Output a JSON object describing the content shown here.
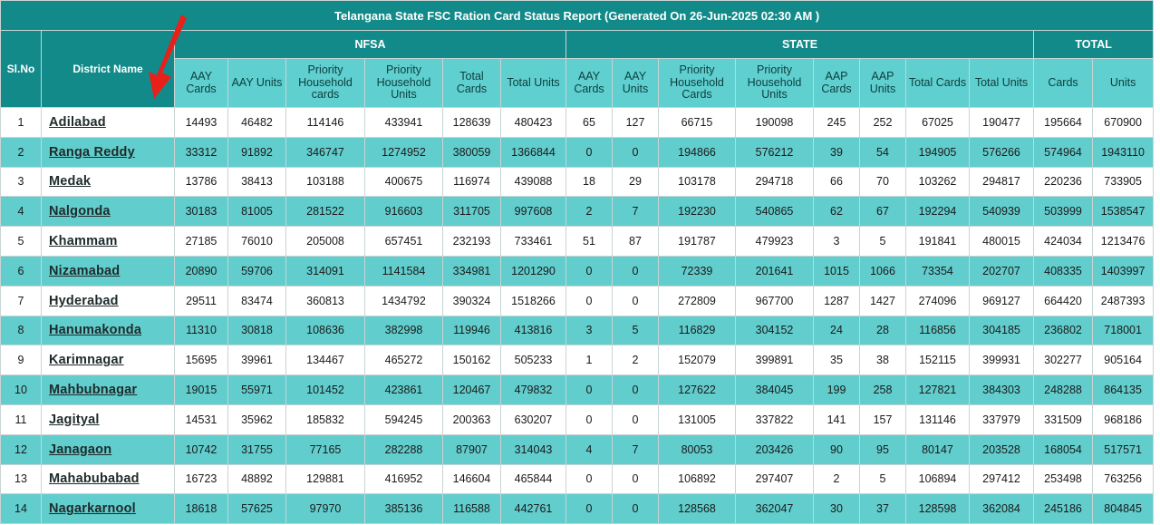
{
  "title": "Telangana State FSC Ration Card Status Report (Generated On 26-Jun-2025 02:30 AM )",
  "groups": {
    "slno": "Sl.No",
    "district": "District Name",
    "nfsa": "NFSA",
    "state": "STATE",
    "total": "TOTAL"
  },
  "subheaders": {
    "nfsa": [
      "AAY Cards",
      "AAY Units",
      "Priority Household cards",
      "Priority Household Units",
      "Total Cards",
      "Total Units"
    ],
    "state": [
      "AAY Cards",
      "AAY Units",
      "Priority Household Cards",
      "Priority Household Units",
      "AAP Cards",
      "AAP Units",
      "Total Cards",
      "Total Units"
    ],
    "total": [
      "Cards",
      "Units"
    ]
  },
  "rows": [
    {
      "sl": "1",
      "district": "Adilabad",
      "nfsa": [
        "14493",
        "46482",
        "114146",
        "433941",
        "128639",
        "480423"
      ],
      "state": [
        "65",
        "127",
        "66715",
        "190098",
        "245",
        "252",
        "67025",
        "190477"
      ],
      "total": [
        "195664",
        "670900"
      ]
    },
    {
      "sl": "2",
      "district": "Ranga Reddy",
      "nfsa": [
        "33312",
        "91892",
        "346747",
        "1274952",
        "380059",
        "1366844"
      ],
      "state": [
        "0",
        "0",
        "194866",
        "576212",
        "39",
        "54",
        "194905",
        "576266"
      ],
      "total": [
        "574964",
        "1943110"
      ]
    },
    {
      "sl": "3",
      "district": "Medak",
      "nfsa": [
        "13786",
        "38413",
        "103188",
        "400675",
        "116974",
        "439088"
      ],
      "state": [
        "18",
        "29",
        "103178",
        "294718",
        "66",
        "70",
        "103262",
        "294817"
      ],
      "total": [
        "220236",
        "733905"
      ]
    },
    {
      "sl": "4",
      "district": "Nalgonda",
      "nfsa": [
        "30183",
        "81005",
        "281522",
        "916603",
        "311705",
        "997608"
      ],
      "state": [
        "2",
        "7",
        "192230",
        "540865",
        "62",
        "67",
        "192294",
        "540939"
      ],
      "total": [
        "503999",
        "1538547"
      ]
    },
    {
      "sl": "5",
      "district": "Khammam",
      "nfsa": [
        "27185",
        "76010",
        "205008",
        "657451",
        "232193",
        "733461"
      ],
      "state": [
        "51",
        "87",
        "191787",
        "479923",
        "3",
        "5",
        "191841",
        "480015"
      ],
      "total": [
        "424034",
        "1213476"
      ]
    },
    {
      "sl": "6",
      "district": "Nizamabad",
      "nfsa": [
        "20890",
        "59706",
        "314091",
        "1141584",
        "334981",
        "1201290"
      ],
      "state": [
        "0",
        "0",
        "72339",
        "201641",
        "1015",
        "1066",
        "73354",
        "202707"
      ],
      "total": [
        "408335",
        "1403997"
      ]
    },
    {
      "sl": "7",
      "district": "Hyderabad",
      "nfsa": [
        "29511",
        "83474",
        "360813",
        "1434792",
        "390324",
        "1518266"
      ],
      "state": [
        "0",
        "0",
        "272809",
        "967700",
        "1287",
        "1427",
        "274096",
        "969127"
      ],
      "total": [
        "664420",
        "2487393"
      ]
    },
    {
      "sl": "8",
      "district": "Hanumakonda",
      "nfsa": [
        "11310",
        "30818",
        "108636",
        "382998",
        "119946",
        "413816"
      ],
      "state": [
        "3",
        "5",
        "116829",
        "304152",
        "24",
        "28",
        "116856",
        "304185"
      ],
      "total": [
        "236802",
        "718001"
      ]
    },
    {
      "sl": "9",
      "district": "Karimnagar",
      "nfsa": [
        "15695",
        "39961",
        "134467",
        "465272",
        "150162",
        "505233"
      ],
      "state": [
        "1",
        "2",
        "152079",
        "399891",
        "35",
        "38",
        "152115",
        "399931"
      ],
      "total": [
        "302277",
        "905164"
      ]
    },
    {
      "sl": "10",
      "district": "Mahbubnagar",
      "nfsa": [
        "19015",
        "55971",
        "101452",
        "423861",
        "120467",
        "479832"
      ],
      "state": [
        "0",
        "0",
        "127622",
        "384045",
        "199",
        "258",
        "127821",
        "384303"
      ],
      "total": [
        "248288",
        "864135"
      ]
    },
    {
      "sl": "11",
      "district": "Jagityal",
      "nfsa": [
        "14531",
        "35962",
        "185832",
        "594245",
        "200363",
        "630207"
      ],
      "state": [
        "0",
        "0",
        "131005",
        "337822",
        "141",
        "157",
        "131146",
        "337979"
      ],
      "total": [
        "331509",
        "968186"
      ]
    },
    {
      "sl": "12",
      "district": "Janagaon",
      "nfsa": [
        "10742",
        "31755",
        "77165",
        "282288",
        "87907",
        "314043"
      ],
      "state": [
        "4",
        "7",
        "80053",
        "203426",
        "90",
        "95",
        "80147",
        "203528"
      ],
      "total": [
        "168054",
        "517571"
      ]
    },
    {
      "sl": "13",
      "district": "Mahabubabad",
      "nfsa": [
        "16723",
        "48892",
        "129881",
        "416952",
        "146604",
        "465844"
      ],
      "state": [
        "0",
        "0",
        "106892",
        "297407",
        "2",
        "5",
        "106894",
        "297412"
      ],
      "total": [
        "253498",
        "763256"
      ]
    },
    {
      "sl": "14",
      "district": "Nagarkarnool",
      "nfsa": [
        "18618",
        "57625",
        "97970",
        "385136",
        "116588",
        "442761"
      ],
      "state": [
        "0",
        "0",
        "128568",
        "362047",
        "30",
        "37",
        "128598",
        "362084"
      ],
      "total": [
        "245186",
        "804845"
      ]
    }
  ],
  "colors": {
    "header": "#138a8a",
    "subheader": "#5fcfcf",
    "row_alt": "#62cdcd",
    "arrow": "#e8201a"
  },
  "annotation": {
    "icon": "red-arrow-icon"
  }
}
